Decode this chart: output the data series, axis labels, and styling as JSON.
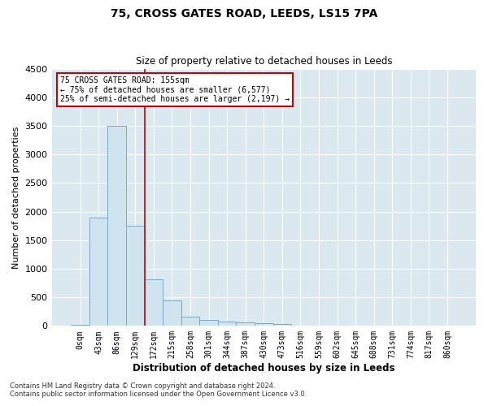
{
  "title1": "75, CROSS GATES ROAD, LEEDS, LS15 7PA",
  "title2": "Size of property relative to detached houses in Leeds",
  "xlabel": "Distribution of detached houses by size in Leeds",
  "ylabel": "Number of detached properties",
  "bar_labels": [
    "0sqm",
    "43sqm",
    "86sqm",
    "129sqm",
    "172sqm",
    "215sqm",
    "258sqm",
    "301sqm",
    "344sqm",
    "387sqm",
    "430sqm",
    "473sqm",
    "516sqm",
    "559sqm",
    "602sqm",
    "645sqm",
    "688sqm",
    "731sqm",
    "774sqm",
    "817sqm",
    "860sqm"
  ],
  "bar_values": [
    20,
    1900,
    3500,
    1750,
    820,
    450,
    160,
    100,
    75,
    60,
    50,
    30,
    0,
    0,
    0,
    0,
    0,
    0,
    0,
    0,
    0
  ],
  "bar_color": "#d0e4f0",
  "bar_edge_color": "#7aaac8",
  "vline_x": 3.5,
  "vline_color": "#cc0000",
  "ylim": [
    0,
    4500
  ],
  "yticks": [
    0,
    500,
    1000,
    1500,
    2000,
    2500,
    3000,
    3500,
    4000,
    4500
  ],
  "annotation_text": "75 CROSS GATES ROAD: 155sqm\n← 75% of detached houses are smaller (6,577)\n25% of semi-detached houses are larger (2,197) →",
  "annotation_box_color": "#ffffff",
  "annotation_box_edge": "#cc0000",
  "footer1": "Contains HM Land Registry data © Crown copyright and database right 2024.",
  "footer2": "Contains public sector information licensed under the Open Government Licence v3.0."
}
